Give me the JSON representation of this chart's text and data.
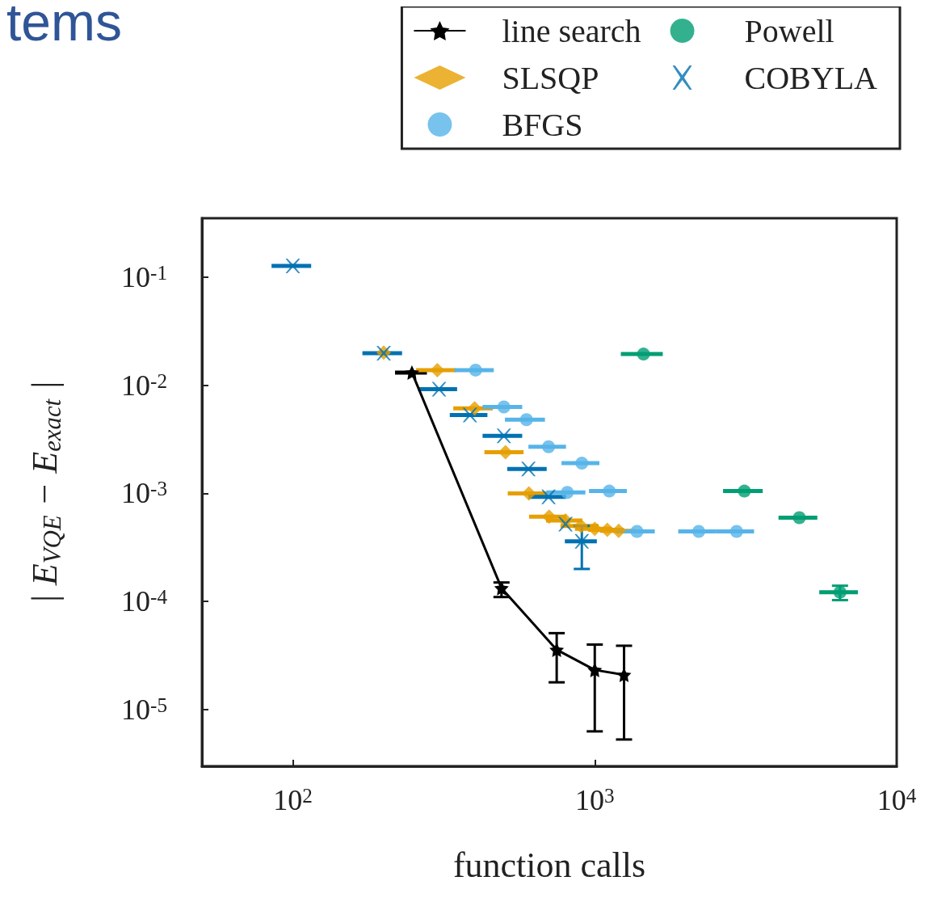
{
  "chart_data": {
    "type": "scatter",
    "annotations": [
      "tems"
    ],
    "xlabel": "function calls",
    "ylabel": "| E$_{VQE}$ − E$_{exact}$ |",
    "log": "xy",
    "grid": false,
    "legend": "top right",
    "xlim": [
      50,
      10000
    ],
    "ylim": [
      3e-06,
      0.35
    ],
    "xticks": [
      {
        "value": 100,
        "label": "10$^{2}$"
      },
      {
        "value": 1000,
        "label": "10$^{3}$"
      },
      {
        "value": 10000,
        "label": "10$^{4}$"
      }
    ],
    "yticks": [
      {
        "value": 1e-05,
        "label": "10$^{-5}$"
      },
      {
        "value": 0.0001,
        "label": "10$^{-4}$"
      },
      {
        "value": 0.001,
        "label": "10$^{-3}$"
      },
      {
        "value": 0.01,
        "label": "10$^{-2}$"
      },
      {
        "value": 0.1,
        "label": "10$^{-1}$"
      }
    ],
    "series": [
      {
        "name": "line search",
        "type": "line",
        "marker": "star",
        "line_style": "solid",
        "color": "#000000",
        "x": [
          248,
          491,
          748,
          1000,
          1250
        ],
        "values": [
          0.0131,
          0.000133,
          3.58e-05,
          2.33e-05,
          2.1e-05
        ],
        "errors": [
          null,
          [
            0.00011,
            0.00015
          ],
          [
            1.79e-05,
            5.1e-05
          ],
          [
            6.3e-06,
            4e-05
          ],
          [
            5.3e-06,
            3.9e-05
          ]
        ],
        "xerrors": [
          30,
          null,
          null,
          null,
          null
        ]
      },
      {
        "name": "SLSQP",
        "marker": "diamond",
        "color": "#e69f00",
        "x": [
          200,
          301,
          400,
          506,
          605,
          706,
          800,
          900,
          1000,
          1100,
          1200
        ],
        "values": [
          0.02,
          0.0138,
          0.0061,
          0.0024,
          0.001,
          0.00061,
          0.00056,
          0.0005,
          0.00047,
          0.00046,
          0.00045
        ],
        "xerrors": [
          null,
          45,
          60,
          75,
          90,
          100,
          110,
          130,
          140,
          150,
          160
        ]
      },
      {
        "name": "BFGS",
        "marker": "circle",
        "color": "#56b4e9",
        "x": [
          403,
          500,
          594,
          703,
          906,
          811,
          1117,
          1380,
          2210,
          2950
        ],
        "values": [
          0.0138,
          0.0063,
          0.0048,
          0.0027,
          0.0019,
          0.00102,
          0.00105,
          0.000445,
          0.000445,
          0.000445
        ],
        "xerrors": [
          60,
          75,
          90,
          100,
          130,
          120,
          160,
          200,
          320,
          420
        ]
      },
      {
        "name": "Powell",
        "marker": "circle",
        "color": "#009e73",
        "x": [
          1450,
          3130,
          4760,
          6490
        ],
        "values": [
          0.0194,
          0.00105,
          0.000596,
          0.000122
        ],
        "errors": [
          null,
          null,
          null,
          [
            0.000103,
            0.00014
          ]
        ],
        "xerrors": [
          230,
          470,
          700,
          950
        ]
      },
      {
        "name": "COBYLA",
        "marker": "cross",
        "color": "#0072b2",
        "x": [
          100,
          200,
          305,
          386,
          500,
          603,
          703,
          800,
          906
        ],
        "values": [
          0.127,
          0.0198,
          0.0092,
          0.0053,
          0.0034,
          0.00168,
          0.00093,
          0.00052,
          0.00036
        ],
        "errors": [
          null,
          null,
          null,
          null,
          null,
          null,
          null,
          null,
          [
            0.0002,
            0.0005
          ]
        ],
        "xerrors": [
          15,
          30,
          45,
          55,
          75,
          90,
          100,
          null,
          110
        ]
      }
    ]
  }
}
